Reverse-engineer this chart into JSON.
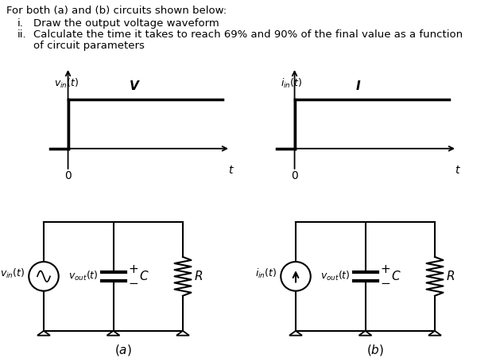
{
  "bg_color": "#ffffff",
  "text_color": "#000000",
  "title_text": "For both (a) and (b) circuits shown below:",
  "item_i": "Draw the output voltage waveform",
  "item_ii_line1": "Calculate the time it takes to reach 69% and 90% of the final value as a function",
  "item_ii_line2": "of circuit parameters",
  "label_a": "(a)",
  "label_b": "(b)"
}
